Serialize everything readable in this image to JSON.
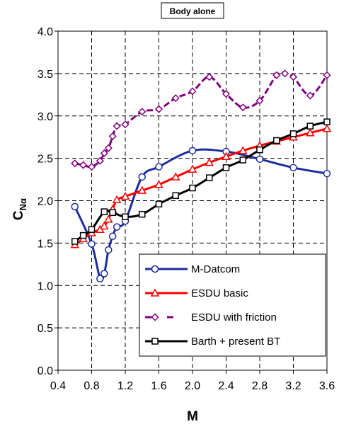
{
  "chart_data": {
    "type": "line",
    "title": "Body alone",
    "xlabel": "M",
    "ylabel_main": "C",
    "ylabel_sub": "Nα",
    "xlim": [
      0.4,
      3.6
    ],
    "ylim": [
      0.0,
      4.0
    ],
    "xticks": [
      "0.4",
      "0.8",
      "1.2",
      "1.6",
      "2.0",
      "2.4",
      "2.8",
      "3.2",
      "3.6"
    ],
    "yticks": [
      "0.0",
      "0.5",
      "1.0",
      "1.5",
      "2.0",
      "2.5",
      "3.0",
      "3.5",
      "4.0"
    ],
    "grid": "dashed",
    "legend_position": "bottom-right",
    "series": [
      {
        "name": "M-Datcom",
        "color": "#1c2c9c",
        "marker": "circle",
        "line_style": "solid",
        "x": [
          0.6,
          0.8,
          0.9,
          0.95,
          1.0,
          1.05,
          1.1,
          1.2,
          1.4,
          1.6,
          2.0,
          2.4,
          2.8,
          3.2,
          3.6
        ],
        "y": [
          1.93,
          1.49,
          1.08,
          1.14,
          1.42,
          1.58,
          1.69,
          1.76,
          2.28,
          2.4,
          2.59,
          2.58,
          2.49,
          2.39,
          2.32
        ]
      },
      {
        "name": "ESDU basic",
        "color": "#ff0000",
        "marker": "triangle",
        "line_style": "solid",
        "x": [
          0.6,
          0.7,
          0.8,
          0.9,
          0.95,
          1.0,
          1.05,
          1.1,
          1.2,
          1.4,
          1.6,
          1.8,
          2.0,
          2.2,
          2.4,
          2.6,
          2.8,
          3.0,
          3.2,
          3.4,
          3.6
        ],
        "y": [
          1.48,
          1.55,
          1.62,
          1.66,
          1.7,
          1.78,
          1.9,
          2.01,
          2.05,
          2.12,
          2.19,
          2.28,
          2.37,
          2.45,
          2.52,
          2.59,
          2.65,
          2.7,
          2.75,
          2.8,
          2.85
        ]
      },
      {
        "name": "ESDU with friction",
        "color": "#800080",
        "marker": "diamond",
        "line_style": "dashed",
        "x": [
          0.6,
          0.7,
          0.8,
          0.9,
          0.95,
          1.0,
          1.05,
          1.1,
          1.2,
          1.4,
          1.6,
          1.8,
          2.0,
          2.2,
          2.4,
          2.6,
          2.8,
          3.0,
          3.1,
          3.2,
          3.4,
          3.6
        ],
        "y": [
          2.44,
          2.42,
          2.4,
          2.47,
          2.56,
          2.62,
          2.76,
          2.88,
          2.9,
          3.05,
          3.08,
          3.21,
          3.29,
          3.46,
          3.26,
          3.1,
          3.18,
          3.48,
          3.5,
          3.46,
          3.24,
          3.48
        ]
      },
      {
        "name": "Barth + present BT",
        "color": "#000000",
        "marker": "square",
        "line_style": "solid",
        "x": [
          0.6,
          0.7,
          0.8,
          0.95,
          1.05,
          1.2,
          1.4,
          1.6,
          1.8,
          2.0,
          2.2,
          2.4,
          2.6,
          2.8,
          3.0,
          3.2,
          3.4,
          3.6
        ],
        "y": [
          1.52,
          1.59,
          1.66,
          1.87,
          1.86,
          1.81,
          1.84,
          1.96,
          2.06,
          2.15,
          2.27,
          2.39,
          2.48,
          2.6,
          2.71,
          2.79,
          2.88,
          2.93
        ]
      }
    ]
  }
}
